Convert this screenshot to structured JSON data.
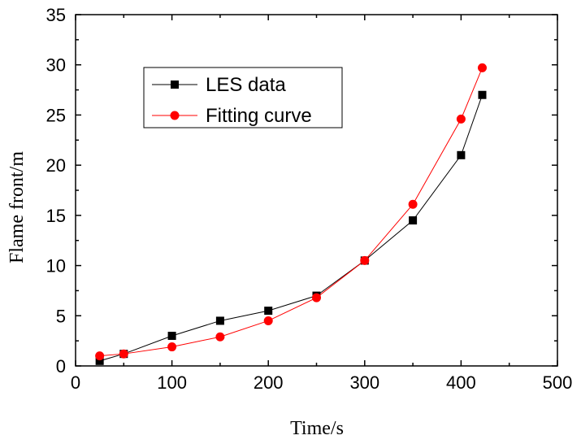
{
  "chart_data": {
    "type": "line",
    "xlabel": "Time/s",
    "ylabel": "Flame front/m",
    "xlim": [
      0,
      500
    ],
    "ylim": [
      0,
      35
    ],
    "xticks": [
      0,
      100,
      200,
      300,
      400,
      500
    ],
    "yticks": [
      0,
      5,
      10,
      15,
      20,
      25,
      30,
      35
    ],
    "grid": false,
    "legend_position": "upper-left",
    "series": [
      {
        "name": "LES data",
        "color": "#000000",
        "marker": "square",
        "x": [
          25,
          50,
          100,
          150,
          200,
          250,
          300,
          350,
          400,
          422
        ],
        "y": [
          0.5,
          1.2,
          3.0,
          4.5,
          5.5,
          7.0,
          10.5,
          14.5,
          21.0,
          27.0
        ]
      },
      {
        "name": "Fitting curve",
        "color": "#ff0000",
        "marker": "circle",
        "x": [
          25,
          50,
          100,
          150,
          200,
          250,
          300,
          350,
          400,
          422
        ],
        "y": [
          1.0,
          1.2,
          1.9,
          2.9,
          4.5,
          6.8,
          10.5,
          16.1,
          24.6,
          29.7
        ]
      }
    ]
  }
}
